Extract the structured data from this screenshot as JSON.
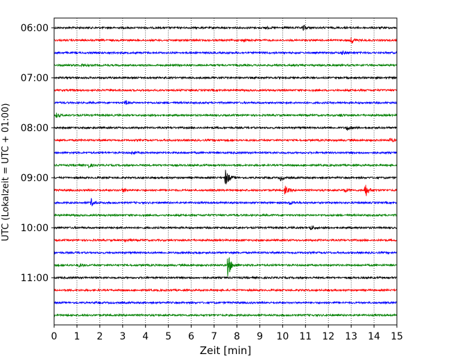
{
  "chart_data": {
    "type": "line",
    "title": "",
    "xlabel": "Zeit  [min]",
    "ylabel": "UTC (Lokalzeit = UTC + 01:00)",
    "xlim": [
      0,
      15
    ],
    "x_ticks": [
      "0",
      "1",
      "2",
      "3",
      "4",
      "5",
      "6",
      "7",
      "8",
      "9",
      "10",
      "11",
      "12",
      "13",
      "14",
      "15"
    ],
    "y_ticks": [
      {
        "label": "06:00",
        "row": 0
      },
      {
        "label": "07:00",
        "row": 4
      },
      {
        "label": "08:00",
        "row": 8
      },
      {
        "label": "09:00",
        "row": 12
      },
      {
        "label": "10:00",
        "row": 16
      },
      {
        "label": "11:00",
        "row": 20
      }
    ],
    "grid": "vertical-dotted",
    "color_cycle": [
      "#000000",
      "#ff0000",
      "#0000ff",
      "#008000"
    ],
    "traces": [
      {
        "start": "06:00",
        "color": "#000000",
        "noise": 1.0,
        "events": [
          {
            "t": 10.9,
            "amp": 4
          },
          {
            "t": 9.2,
            "amp": 2
          }
        ]
      },
      {
        "start": "06:15",
        "color": "#ff0000",
        "noise": 1.0,
        "events": [
          {
            "t": 13.0,
            "amp": 5
          },
          {
            "t": 8.3,
            "amp": 2
          }
        ]
      },
      {
        "start": "06:30",
        "color": "#0000ff",
        "noise": 1.0,
        "events": [
          {
            "t": 12.6,
            "amp": 2
          }
        ]
      },
      {
        "start": "06:45",
        "color": "#008000",
        "noise": 1.0,
        "events": [
          {
            "t": 1.2,
            "amp": 2
          }
        ]
      },
      {
        "start": "07:00",
        "color": "#000000",
        "noise": 1.0,
        "events": []
      },
      {
        "start": "07:15",
        "color": "#ff0000",
        "noise": 1.0,
        "events": []
      },
      {
        "start": "07:30",
        "color": "#0000ff",
        "noise": 1.0,
        "events": [
          {
            "t": 3.1,
            "amp": 3
          }
        ]
      },
      {
        "start": "07:45",
        "color": "#008000",
        "noise": 1.0,
        "events": [
          {
            "t": 0.1,
            "amp": 3
          },
          {
            "t": 12.5,
            "amp": 2
          }
        ]
      },
      {
        "start": "08:00",
        "color": "#000000",
        "noise": 1.0,
        "events": [
          {
            "t": 12.8,
            "amp": 4
          }
        ]
      },
      {
        "start": "08:15",
        "color": "#ff0000",
        "noise": 1.0,
        "events": [
          {
            "t": 14.7,
            "amp": 3
          }
        ]
      },
      {
        "start": "08:30",
        "color": "#0000ff",
        "noise": 1.0,
        "events": [
          {
            "t": 3.4,
            "amp": 2
          }
        ]
      },
      {
        "start": "08:45",
        "color": "#008000",
        "noise": 1.0,
        "events": [
          {
            "t": 1.5,
            "amp": 3
          }
        ]
      },
      {
        "start": "09:00",
        "color": "#000000",
        "noise": 1.0,
        "events": [
          {
            "t": 7.5,
            "amp": 14
          },
          {
            "t": 9.9,
            "amp": 4
          }
        ]
      },
      {
        "start": "09:15",
        "color": "#ff0000",
        "noise": 1.0,
        "events": [
          {
            "t": 10.1,
            "amp": 6
          },
          {
            "t": 13.6,
            "amp": 12
          },
          {
            "t": 3.0,
            "amp": 3
          },
          {
            "t": 12.7,
            "amp": 3
          }
        ]
      },
      {
        "start": "09:30",
        "color": "#0000ff",
        "noise": 1.0,
        "events": [
          {
            "t": 1.6,
            "amp": 6
          },
          {
            "t": 10.3,
            "amp": 3
          }
        ]
      },
      {
        "start": "09:45",
        "color": "#008000",
        "noise": 1.0,
        "events": []
      },
      {
        "start": "10:00",
        "color": "#000000",
        "noise": 1.0,
        "events": [
          {
            "t": 11.2,
            "amp": 4
          }
        ]
      },
      {
        "start": "10:15",
        "color": "#ff0000",
        "noise": 1.0,
        "events": [
          {
            "t": 3.1,
            "amp": 2
          }
        ]
      },
      {
        "start": "10:30",
        "color": "#0000ff",
        "noise": 1.0,
        "events": [
          {
            "t": 6.1,
            "amp": 2
          }
        ]
      },
      {
        "start": "10:45",
        "color": "#008000",
        "noise": 1.0,
        "events": [
          {
            "t": 7.6,
            "amp": 18
          },
          {
            "t": 1.1,
            "amp": 2
          }
        ]
      },
      {
        "start": "11:00",
        "color": "#000000",
        "noise": 1.0,
        "events": []
      },
      {
        "start": "11:15",
        "color": "#ff0000",
        "noise": 1.0,
        "events": []
      },
      {
        "start": "11:30",
        "color": "#0000ff",
        "noise": 1.0,
        "events": []
      },
      {
        "start": "11:45",
        "color": "#008000",
        "noise": 1.0,
        "events": []
      }
    ]
  }
}
